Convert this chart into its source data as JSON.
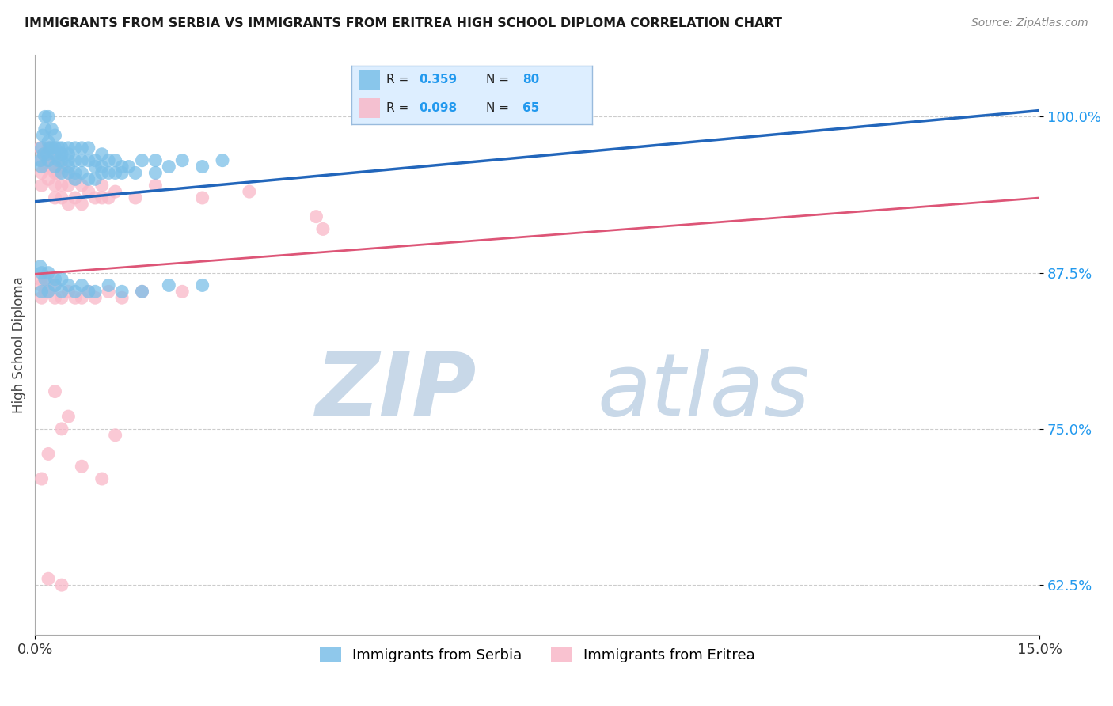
{
  "title": "IMMIGRANTS FROM SERBIA VS IMMIGRANTS FROM ERITREA HIGH SCHOOL DIPLOMA CORRELATION CHART",
  "source": "Source: ZipAtlas.com",
  "ylabel": "High School Diploma",
  "ytick_labels": [
    "62.5%",
    "75.0%",
    "87.5%",
    "100.0%"
  ],
  "ytick_values": [
    0.625,
    0.75,
    0.875,
    1.0
  ],
  "xlim": [
    0.0,
    0.15
  ],
  "ylim": [
    0.585,
    1.05
  ],
  "serbia_R": 0.359,
  "serbia_N": 80,
  "eritrea_R": 0.098,
  "eritrea_N": 65,
  "serbia_color": "#7bbfe8",
  "eritrea_color": "#f9b8c8",
  "serbia_line_color": "#2266bb",
  "eritrea_line_color": "#dd5577",
  "watermark_color": "#c8d8e8",
  "serbia_x": [
    0.0008,
    0.001,
    0.001,
    0.0012,
    0.0013,
    0.0015,
    0.0015,
    0.0018,
    0.002,
    0.002,
    0.002,
    0.0022,
    0.0025,
    0.0025,
    0.003,
    0.003,
    0.003,
    0.003,
    0.0035,
    0.0035,
    0.004,
    0.004,
    0.004,
    0.004,
    0.005,
    0.005,
    0.005,
    0.005,
    0.005,
    0.006,
    0.006,
    0.006,
    0.006,
    0.007,
    0.007,
    0.007,
    0.008,
    0.008,
    0.008,
    0.009,
    0.009,
    0.009,
    0.01,
    0.01,
    0.01,
    0.011,
    0.011,
    0.012,
    0.012,
    0.013,
    0.013,
    0.014,
    0.015,
    0.016,
    0.018,
    0.018,
    0.02,
    0.022,
    0.025,
    0.028,
    0.0008,
    0.001,
    0.001,
    0.0015,
    0.002,
    0.002,
    0.003,
    0.003,
    0.004,
    0.004,
    0.005,
    0.006,
    0.007,
    0.008,
    0.009,
    0.011,
    0.013,
    0.016,
    0.02,
    0.025
  ],
  "serbia_y": [
    0.965,
    0.975,
    0.96,
    0.985,
    0.97,
    1.0,
    0.99,
    0.97,
    0.98,
    0.965,
    1.0,
    0.975,
    0.99,
    0.975,
    0.985,
    0.975,
    0.97,
    0.96,
    0.975,
    0.965,
    0.975,
    0.965,
    0.97,
    0.955,
    0.975,
    0.965,
    0.955,
    0.97,
    0.96,
    0.975,
    0.965,
    0.955,
    0.95,
    0.975,
    0.965,
    0.955,
    0.975,
    0.965,
    0.95,
    0.965,
    0.96,
    0.95,
    0.97,
    0.96,
    0.955,
    0.965,
    0.955,
    0.965,
    0.955,
    0.96,
    0.955,
    0.96,
    0.955,
    0.965,
    0.965,
    0.955,
    0.96,
    0.965,
    0.96,
    0.965,
    0.88,
    0.875,
    0.86,
    0.87,
    0.875,
    0.86,
    0.87,
    0.865,
    0.87,
    0.86,
    0.865,
    0.86,
    0.865,
    0.86,
    0.86,
    0.865,
    0.86,
    0.86,
    0.865,
    0.865
  ],
  "eritrea_x": [
    0.0008,
    0.001,
    0.001,
    0.001,
    0.0013,
    0.0015,
    0.002,
    0.002,
    0.002,
    0.0025,
    0.003,
    0.003,
    0.003,
    0.003,
    0.0035,
    0.004,
    0.004,
    0.004,
    0.005,
    0.005,
    0.005,
    0.006,
    0.006,
    0.007,
    0.007,
    0.008,
    0.009,
    0.01,
    0.01,
    0.011,
    0.012,
    0.015,
    0.018,
    0.025,
    0.032,
    0.042,
    0.043,
    0.0008,
    0.001,
    0.001,
    0.0015,
    0.002,
    0.002,
    0.003,
    0.003,
    0.004,
    0.005,
    0.006,
    0.007,
    0.008,
    0.009,
    0.011,
    0.013,
    0.016,
    0.022,
    0.001,
    0.002,
    0.004,
    0.007,
    0.012,
    0.003,
    0.005,
    0.01,
    0.002,
    0.004
  ],
  "eritrea_y": [
    0.975,
    0.965,
    0.955,
    0.945,
    0.97,
    0.96,
    0.975,
    0.965,
    0.95,
    0.96,
    0.965,
    0.955,
    0.945,
    0.935,
    0.955,
    0.96,
    0.945,
    0.935,
    0.955,
    0.945,
    0.93,
    0.95,
    0.935,
    0.945,
    0.93,
    0.94,
    0.935,
    0.945,
    0.935,
    0.935,
    0.94,
    0.935,
    0.945,
    0.935,
    0.94,
    0.92,
    0.91,
    0.87,
    0.865,
    0.855,
    0.86,
    0.87,
    0.86,
    0.865,
    0.855,
    0.855,
    0.86,
    0.855,
    0.855,
    0.86,
    0.855,
    0.86,
    0.855,
    0.86,
    0.86,
    0.71,
    0.73,
    0.75,
    0.72,
    0.745,
    0.78,
    0.76,
    0.71,
    0.63,
    0.625
  ]
}
